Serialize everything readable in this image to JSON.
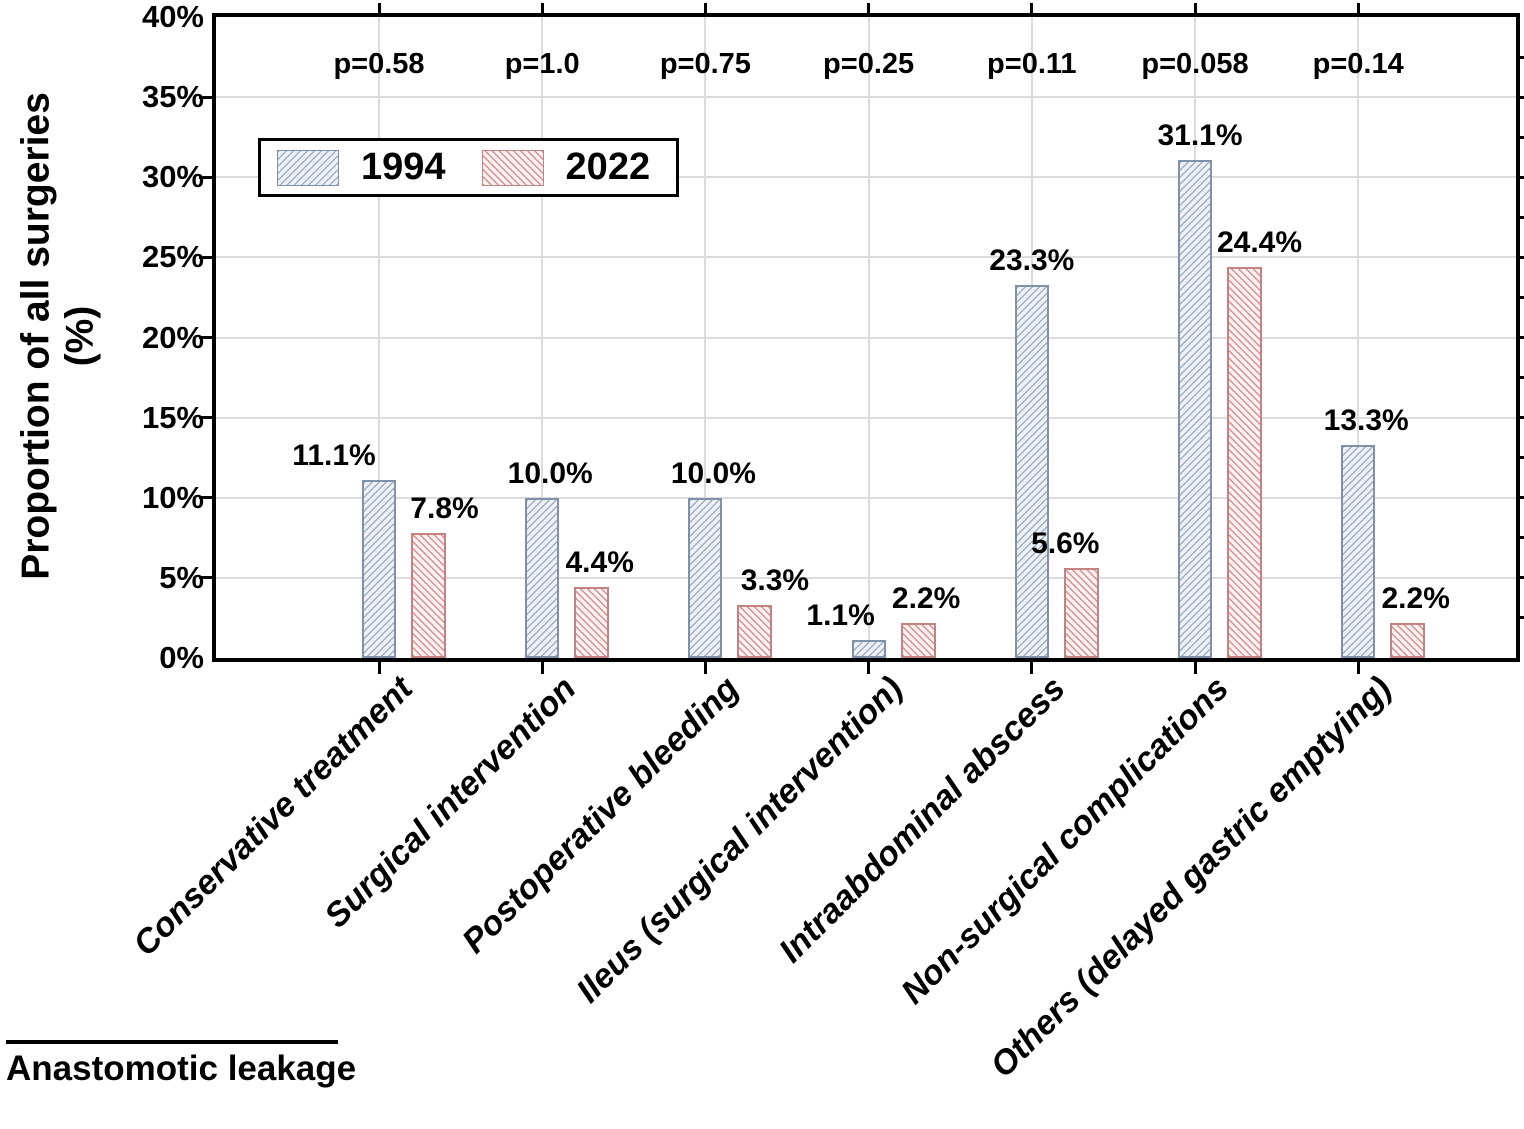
{
  "figure": {
    "y_axis_title_line1": "Proportion of all surgeries",
    "y_axis_title_line2": "(%)",
    "annotation_label": "Anastomotic leakage"
  },
  "chart_data": {
    "type": "bar",
    "title": "",
    "xlabel": "",
    "ylabel": "Proportion of all surgeries (%)",
    "ylim": [
      0,
      40
    ],
    "ytick_step": 5,
    "ytick_labels": [
      "0%",
      "5%",
      "10%",
      "15%",
      "20%",
      "25%",
      "30%",
      "35%",
      "40%"
    ],
    "grid": true,
    "legend_position": "upper-left",
    "categories": [
      "Conservative treatment",
      "Surgical intervention",
      "Postoperative bleeding",
      "Ileus (surgical intervention)",
      "Intraabdominal abscess",
      "Non-surgical complications",
      "Others (delayed gastric emptying)"
    ],
    "series": [
      {
        "name": "1994",
        "values": [
          11.1,
          10.0,
          10.0,
          1.1,
          23.3,
          31.1,
          13.3
        ],
        "value_labels": [
          "11.1%",
          "10.0%",
          "10.0%",
          "1.1%",
          "23.3%",
          "31.1%",
          "13.3%"
        ],
        "hatch": "/",
        "line_color": "#9fb0c4",
        "fill_color": "#eef1f5",
        "border_color": "#8091a8"
      },
      {
        "name": "2022",
        "values": [
          7.8,
          4.4,
          3.3,
          2.2,
          5.6,
          24.4,
          2.2
        ],
        "value_labels": [
          "7.8%",
          "4.4%",
          "3.3%",
          "2.2%",
          "5.6%",
          "24.4%",
          "2.2%"
        ],
        "hatch": "\\",
        "line_color": "#d79090",
        "fill_color": "#fbf1f1",
        "border_color": "#c28383"
      }
    ],
    "p_values": [
      "p=0.58",
      "p=1.0",
      "p=0.75",
      "p=0.25",
      "p=0.11",
      "p=0.058",
      "p=0.14"
    ],
    "annotation": "Anastomotic leakage",
    "gridline_color": "#dcdcdc"
  }
}
